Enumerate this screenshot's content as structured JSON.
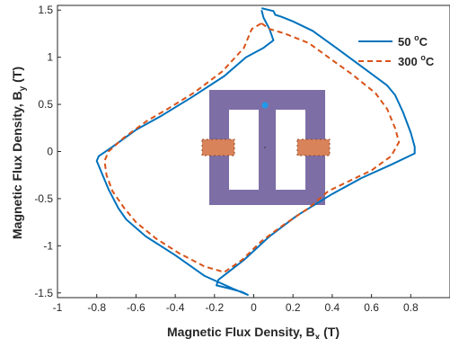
{
  "chart_data": {
    "type": "line",
    "xlabel": {
      "main": "Magnetic Flux Density, B",
      "sub": "x",
      "unit": " (T)"
    },
    "ylabel": {
      "main": "Magnetic Flux Density, B",
      "sub": "y",
      "unit": " (T)"
    },
    "xlim": [
      -1,
      1
    ],
    "ylim": [
      -1.55,
      1.55
    ],
    "xticks": [
      -1,
      -0.8,
      -0.6,
      -0.4,
      -0.2,
      0,
      0.2,
      0.4,
      0.6,
      0.8
    ],
    "xtick_labels": [
      "-1",
      "-0.8",
      "-0.6",
      "-0.4",
      "-0.2",
      "0",
      "0.2",
      "0.4",
      "0.6",
      "0.8"
    ],
    "yticks": [
      -1.5,
      -1,
      -0.5,
      0,
      0.5,
      1,
      1.5
    ],
    "ytick_labels": [
      "-1.5",
      "-1",
      "-0.5",
      "0",
      "0.5",
      "1",
      "1.5"
    ],
    "grid": false,
    "legend_position": "top-right",
    "series": [
      {
        "name": "50 °C",
        "label_main": "50 ",
        "label_sup": "o",
        "label_unit": "C",
        "color": "#0072BD",
        "style": "solid",
        "points": [
          [
            0.04,
            1.52
          ],
          [
            0.1,
            1.49
          ],
          [
            0.11,
            1.45
          ],
          [
            0.14,
            1.43
          ],
          [
            0.2,
            1.38
          ],
          [
            0.3,
            1.28
          ],
          [
            0.42,
            1.1
          ],
          [
            0.55,
            0.9
          ],
          [
            0.68,
            0.7
          ],
          [
            0.72,
            0.6
          ],
          [
            0.76,
            0.42
          ],
          [
            0.8,
            0.2
          ],
          [
            0.82,
            0.05
          ],
          [
            0.82,
            -0.02
          ],
          [
            0.7,
            -0.14
          ],
          [
            0.55,
            -0.28
          ],
          [
            0.4,
            -0.45
          ],
          [
            0.22,
            -0.68
          ],
          [
            0.08,
            -0.9
          ],
          [
            -0.05,
            -1.15
          ],
          [
            -0.18,
            -1.36
          ],
          [
            -0.19,
            -1.42
          ],
          [
            -0.13,
            -1.45
          ],
          [
            -0.06,
            -1.49
          ],
          [
            -0.03,
            -1.52
          ],
          [
            -0.1,
            -1.46
          ],
          [
            -0.25,
            -1.32
          ],
          [
            -0.4,
            -1.1
          ],
          [
            -0.55,
            -0.9
          ],
          [
            -0.65,
            -0.72
          ],
          [
            -0.69,
            -0.6
          ],
          [
            -0.74,
            -0.4
          ],
          [
            -0.78,
            -0.2
          ],
          [
            -0.8,
            -0.1
          ],
          [
            -0.79,
            -0.05
          ],
          [
            -0.72,
            0.05
          ],
          [
            -0.6,
            0.23
          ],
          [
            -0.47,
            0.38
          ],
          [
            -0.32,
            0.57
          ],
          [
            -0.15,
            0.8
          ],
          [
            -0.04,
            1.0
          ],
          [
            0.05,
            1.1
          ],
          [
            0.1,
            1.18
          ],
          [
            0.08,
            1.3
          ],
          [
            0.05,
            1.42
          ],
          [
            0.04,
            1.5
          ]
        ]
      },
      {
        "name": "300 °C",
        "label_main": "300 ",
        "label_sup": "o",
        "label_unit": "C",
        "color": "#D95319",
        "style": "dashed",
        "points": [
          [
            0.04,
            1.36
          ],
          [
            0.08,
            1.3
          ],
          [
            0.16,
            1.25
          ],
          [
            0.28,
            1.15
          ],
          [
            0.4,
            0.97
          ],
          [
            0.5,
            0.82
          ],
          [
            0.62,
            0.62
          ],
          [
            0.68,
            0.45
          ],
          [
            0.72,
            0.25
          ],
          [
            0.74,
            0.1
          ],
          [
            0.7,
            -0.05
          ],
          [
            0.6,
            -0.2
          ],
          [
            0.48,
            -0.32
          ],
          [
            0.38,
            -0.42
          ],
          [
            0.28,
            -0.6
          ],
          [
            0.15,
            -0.78
          ],
          [
            0.04,
            -0.95
          ],
          [
            -0.06,
            -1.15
          ],
          [
            -0.15,
            -1.28
          ],
          [
            -0.25,
            -1.22
          ],
          [
            -0.38,
            -1.08
          ],
          [
            -0.5,
            -0.92
          ],
          [
            -0.6,
            -0.75
          ],
          [
            -0.66,
            -0.6
          ],
          [
            -0.72,
            -0.42
          ],
          [
            -0.75,
            -0.25
          ],
          [
            -0.76,
            -0.1
          ],
          [
            -0.74,
            0.0
          ],
          [
            -0.66,
            0.15
          ],
          [
            -0.54,
            0.33
          ],
          [
            -0.44,
            0.45
          ],
          [
            -0.3,
            0.63
          ],
          [
            -0.16,
            0.85
          ],
          [
            -0.05,
            1.1
          ],
          [
            -0.01,
            1.3
          ],
          [
            0.04,
            1.36
          ]
        ]
      }
    ]
  },
  "inset": {
    "core_color": "#7D6EA6",
    "coil_color": "#D9835A",
    "coil_hatch_color": "#8E4A2A",
    "marker_color": "#1E9BEA"
  }
}
